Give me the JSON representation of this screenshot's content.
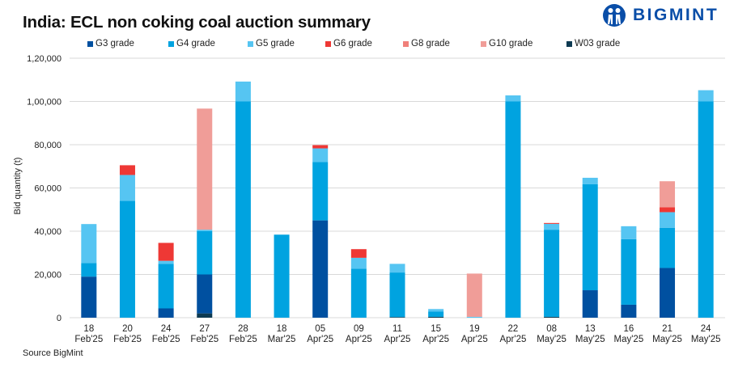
{
  "header": {
    "title": "India: ECL non coking coal auction summary",
    "logo_text": "BIGMINT"
  },
  "footer": {
    "source": "Source BigMint"
  },
  "chart_data": {
    "type": "bar",
    "stacked": true,
    "title": "India: ECL non coking coal auction summary",
    "xlabel": "",
    "ylabel": "Bid quantity (t)",
    "ylim": [
      0,
      120000
    ],
    "yticks": [
      0,
      20000,
      40000,
      60000,
      80000,
      100000,
      120000
    ],
    "ytick_labels": [
      "0",
      "20,000",
      "40,000",
      "60,000",
      "80,000",
      "1,00,000",
      "1,20,000"
    ],
    "grid": true,
    "legend_position": "top",
    "categories": [
      [
        "18",
        "Feb'25"
      ],
      [
        "20",
        "Feb'25"
      ],
      [
        "24",
        "Feb'25"
      ],
      [
        "27",
        "Feb'25"
      ],
      [
        "28",
        "Feb'25"
      ],
      [
        "18",
        "Mar'25"
      ],
      [
        "05",
        "Apr'25"
      ],
      [
        "09",
        "Apr'25"
      ],
      [
        "11",
        "Apr'25"
      ],
      [
        "15",
        "Apr'25"
      ],
      [
        "19",
        "Apr'25"
      ],
      [
        "22",
        "Apr'25"
      ],
      [
        "08",
        "May'25"
      ],
      [
        "13",
        "May'25"
      ],
      [
        "16",
        "May'25"
      ],
      [
        "21",
        "May'25"
      ],
      [
        "24",
        "May'25"
      ]
    ],
    "stack_order": [
      "W03 grade",
      "G3 grade",
      "G4 grade",
      "G5 grade",
      "G6 grade",
      "G8 grade",
      "G10 grade"
    ],
    "series": [
      {
        "name": "G3 grade",
        "color": "#0050a0",
        "values": [
          19000,
          0,
          4300,
          18000,
          0,
          0,
          45000,
          0,
          0,
          0,
          0,
          0,
          0,
          12700,
          6000,
          23000,
          0
        ]
      },
      {
        "name": "G4 grade",
        "color": "#00a3e0",
        "values": [
          6300,
          54000,
          20600,
          20000,
          100000,
          38400,
          27000,
          22700,
          20600,
          2400,
          0,
          100000,
          40300,
          49000,
          30300,
          18600,
          100000
        ]
      },
      {
        "name": "G5 grade",
        "color": "#56c5f2",
        "values": [
          18000,
          12000,
          1400,
          700,
          9200,
          0,
          6300,
          5000,
          4000,
          1200,
          400,
          2800,
          2700,
          3000,
          6000,
          7200,
          5200
        ]
      },
      {
        "name": "G6 grade",
        "color": "#ee3835",
        "values": [
          0,
          4500,
          8300,
          0,
          0,
          0,
          1500,
          4000,
          0,
          0,
          0,
          0,
          400,
          0,
          0,
          2300,
          0
        ]
      },
      {
        "name": "G8 grade",
        "color": "#f0807a",
        "values": [
          0,
          0,
          0,
          0,
          0,
          0,
          0,
          0,
          0,
          0,
          0,
          0,
          0,
          0,
          0,
          0,
          0
        ]
      },
      {
        "name": "G10 grade",
        "color": "#f09d98",
        "values": [
          0,
          0,
          0,
          56000,
          0,
          0,
          0,
          0,
          0,
          0,
          20000,
          0,
          0,
          0,
          0,
          12000,
          0
        ]
      },
      {
        "name": "W03 grade",
        "color": "#0d3a52",
        "values": [
          0,
          0,
          0,
          2000,
          0,
          0,
          0,
          0,
          300,
          400,
          0,
          0,
          400,
          0,
          0,
          0,
          0
        ]
      }
    ]
  }
}
